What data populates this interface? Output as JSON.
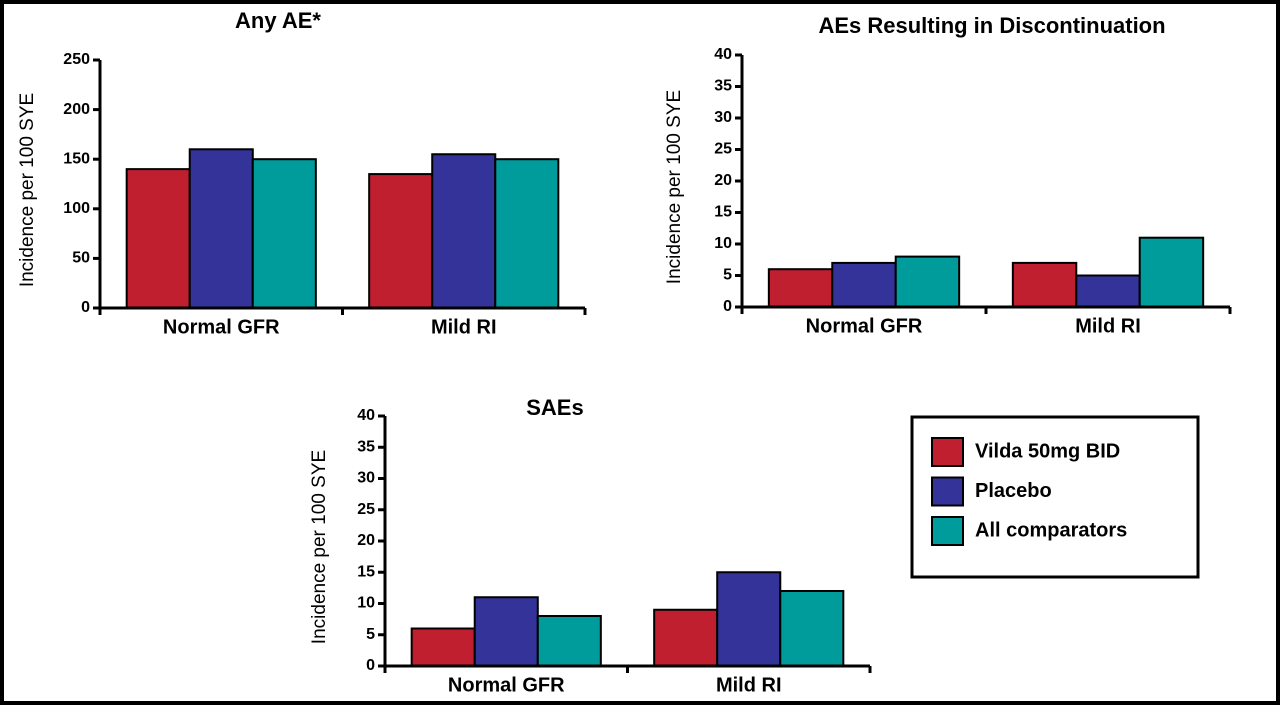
{
  "chart_data": [
    {
      "type": "bar",
      "title": "Any AE*",
      "y_label": "Incidence per 100 SYE",
      "categories": [
        "Normal GFR",
        "Mild RI"
      ],
      "series": [
        {
          "name": "Vilda 50mg BID",
          "color": "#c01f2f",
          "values": [
            140,
            135
          ]
        },
        {
          "name": "Placebo",
          "color": "#333399",
          "values": [
            160,
            155
          ]
        },
        {
          "name": "All comparators",
          "color": "#009b9b",
          "values": [
            150,
            150
          ]
        }
      ],
      "ylim": [
        0,
        250
      ],
      "yticks": [
        0,
        50,
        100,
        150,
        200,
        250
      ]
    },
    {
      "type": "bar",
      "title": "AEs Resulting in Discontinuation",
      "y_label": "Incidence per 100 SYE",
      "categories": [
        "Normal GFR",
        "Mild RI"
      ],
      "series": [
        {
          "color": "#c01f2f",
          "values": [
            6,
            7
          ]
        },
        {
          "color": "#333399",
          "values": [
            7,
            5
          ]
        },
        {
          "color": "#009b9b",
          "values": [
            8,
            11
          ]
        }
      ],
      "ylim": [
        0,
        40
      ],
      "yticks": [
        0,
        5,
        10,
        15,
        20,
        25,
        30,
        35,
        40
      ]
    },
    {
      "type": "bar",
      "title": "SAEs",
      "y_label": "Incidence per 100 SYE",
      "categories": [
        "Normal GFR",
        "Mild RI"
      ],
      "series": [
        {
          "color": "#c01f2f",
          "values": [
            6,
            9
          ]
        },
        {
          "color": "#333399",
          "values": [
            11,
            15
          ]
        },
        {
          "color": "#009b9b",
          "values": [
            8,
            12
          ]
        }
      ],
      "ylim": [
        0,
        40
      ],
      "yticks": [
        0,
        5,
        10,
        15,
        20,
        25,
        30,
        35,
        40
      ]
    }
  ]
}
